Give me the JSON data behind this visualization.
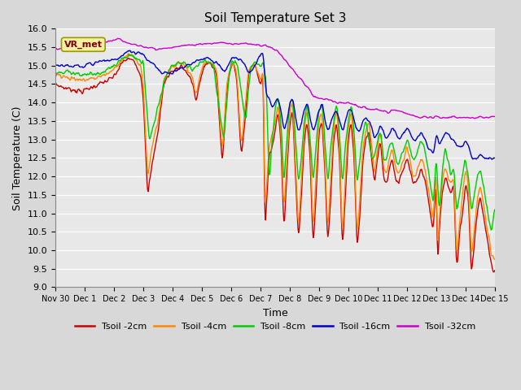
{
  "title": "Soil Temperature Set 3",
  "xlabel": "Time",
  "ylabel": "Soil Temperature (C)",
  "ylim": [
    9.0,
    16.0
  ],
  "yticks": [
    9.0,
    9.5,
    10.0,
    10.5,
    11.0,
    11.5,
    12.0,
    12.5,
    13.0,
    13.5,
    14.0,
    14.5,
    15.0,
    15.5,
    16.0
  ],
  "bg_color": "#d8d8d8",
  "plot_bg_color": "#e8e8e8",
  "legend_label": "VR_met",
  "series_colors": {
    "2cm": "#cc0000",
    "4cm": "#ff8800",
    "8cm": "#00cc00",
    "16cm": "#0000cc",
    "32cm": "#cc00cc"
  },
  "series_labels": {
    "2cm": "Tsoil -2cm",
    "4cm": "Tsoil -4cm",
    "8cm": "Tsoil -8cm",
    "16cm": "Tsoil -16cm",
    "32cm": "Tsoil -32cm"
  },
  "n_points": 720,
  "x_start": 0,
  "x_end": 15,
  "xtick_positions": [
    0,
    1,
    2,
    3,
    4,
    5,
    6,
    7,
    8,
    9,
    10,
    11,
    12,
    13,
    14,
    15
  ],
  "xtick_labels": [
    "Nov 30",
    "Dec 1",
    "Dec 2",
    "Dec 3",
    "Dec 4",
    "Dec 5",
    "Dec 6",
    "Dec 7",
    "Dec 8",
    "Dec 9",
    "Dec 10",
    "Dec 11",
    "Dec 12",
    "Dec 13",
    "Dec 14",
    "Dec 15"
  ]
}
